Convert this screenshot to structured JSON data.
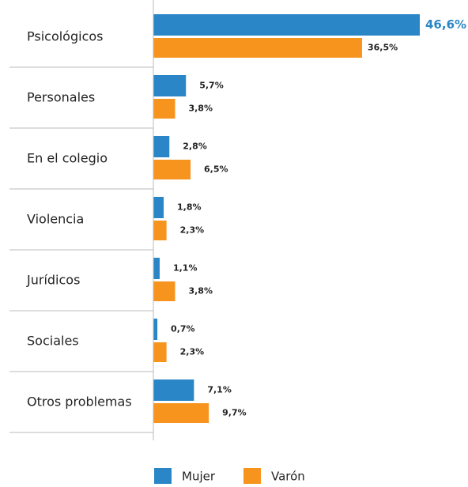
{
  "chart_data": {
    "type": "bar",
    "orientation": "horizontal",
    "categories": [
      "Psicológicos",
      "Personales",
      "En el colegio",
      "Violencia",
      "Jurídicos",
      "Sociales",
      "Otros problemas"
    ],
    "series": [
      {
        "name": "Mujer",
        "color": "#2a86c6",
        "values": [
          46.6,
          5.7,
          2.8,
          1.8,
          1.1,
          0.7,
          7.1
        ],
        "value_labels": [
          "46,6%",
          "5,7%",
          "2,8%",
          "1,8%",
          "1,1%",
          "0,7%",
          "7,1%"
        ]
      },
      {
        "name": "Varón",
        "color": "#f7941d",
        "values": [
          36.5,
          3.8,
          6.5,
          2.3,
          3.8,
          2.3,
          9.7
        ],
        "value_labels": [
          "36,5%",
          "3,8%",
          "6,5%",
          "2,3%",
          "3,8%",
          "2,3%",
          "9,7%"
        ]
      }
    ],
    "legend": "bottom"
  }
}
